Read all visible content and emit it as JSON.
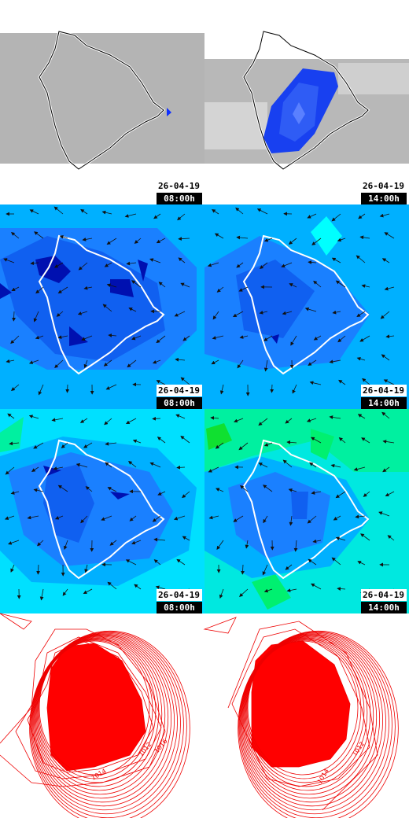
{
  "panels": [
    {
      "date": "26-04-19",
      "time": "08:00h"
    },
    {
      "date": "26-04-19",
      "time": "14:00h"
    },
    {
      "date": "26-04-19",
      "time": "08:00h"
    },
    {
      "date": "26-04-19",
      "time": "14:00h"
    },
    {
      "date": "26-04-19",
      "time": "08:00h"
    },
    {
      "date": "26-04-19",
      "time": "14:00h"
    }
  ],
  "contour_labels": [
    "1012",
    "1016",
    "1014",
    "1012",
    "1014"
  ]
}
